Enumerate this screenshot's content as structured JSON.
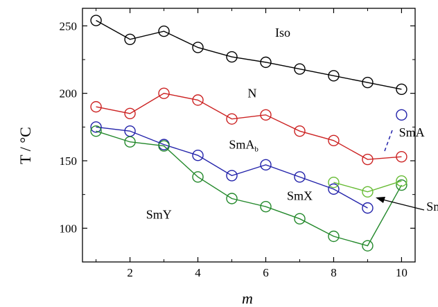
{
  "chart_data": {
    "type": "line",
    "xlabel": "m",
    "ylabel": "T / °C",
    "xlim": [
      0.6,
      10.4
    ],
    "ylim": [
      75,
      263
    ],
    "xticks": [
      2,
      4,
      6,
      8,
      10
    ],
    "yticks": [
      100,
      150,
      200,
      250
    ],
    "grid": false,
    "series": [
      {
        "color": "#000000",
        "x": [
          1,
          2,
          3,
          4,
          5,
          6,
          7,
          8,
          9,
          10
        ],
        "y": [
          254,
          240,
          246,
          234,
          227,
          223,
          218,
          213,
          208,
          203
        ]
      },
      {
        "color": "#cc2222",
        "x": [
          1,
          2,
          3,
          4,
          5,
          6,
          7,
          8,
          9,
          10
        ],
        "y": [
          190,
          185,
          200,
          195,
          181,
          184,
          172,
          165,
          151,
          153
        ]
      },
      {
        "color": "#2222aa",
        "x": [
          1,
          2,
          3,
          4,
          5,
          6,
          7,
          8,
          9
        ],
        "y": [
          175,
          172,
          162,
          154,
          139,
          147,
          138,
          129,
          115
        ]
      },
      {
        "color": "#22882a",
        "x": [
          1,
          2,
          3,
          4,
          5,
          6,
          7,
          8,
          9,
          10
        ],
        "y": [
          172,
          164,
          161,
          138,
          122,
          116,
          107,
          94,
          87,
          132
        ]
      },
      {
        "color": "#66bb33",
        "x": [
          8,
          9,
          10
        ],
        "y": [
          134,
          127,
          135
        ]
      }
    ],
    "extra_points": [
      {
        "color": "#2222aa",
        "x": 10,
        "y": 184
      }
    ],
    "phase_labels": [
      {
        "text": "Iso",
        "x": 6.5,
        "y": 242
      },
      {
        "text": "N",
        "x": 5.6,
        "y": 197
      },
      {
        "text": "SmA",
        "x": 5.35,
        "y": 159,
        "subscript": "b"
      },
      {
        "text": "SmX",
        "x": 7.0,
        "y": 121
      },
      {
        "text": "SmY",
        "x": 2.85,
        "y": 107
      },
      {
        "text": "SmA",
        "x": 10.3,
        "y": 168
      },
      {
        "text": "SmC",
        "x": 11.1,
        "y": 113
      }
    ]
  }
}
